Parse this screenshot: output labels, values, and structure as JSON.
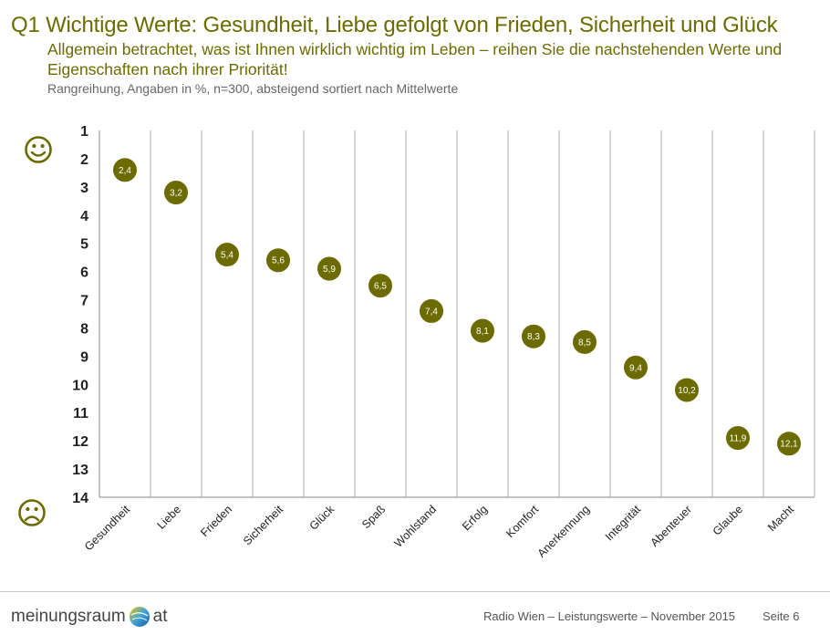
{
  "header": {
    "title": "Q1 Wichtige Werte: Gesundheit, Liebe gefolgt von Frieden, Sicherheit und Glück",
    "subtitle": "Allgemein betrachtet, was ist Ihnen wirklich wichtig im Leben – reihen Sie die nachstehenden Werte und Eigenschaften nach ihrer Priorität!",
    "note": "Rangreihung, Angaben in %, n=300, absteigend sortiert nach Mittelwerte"
  },
  "chart_data": {
    "type": "scatter",
    "categories": [
      "Gesundheit",
      "Liebe",
      "Frieden",
      "Sicherheit",
      "Glück",
      "Spaß",
      "Wohlstand",
      "Erfolg",
      "Komfort",
      "Anerkennung",
      "Integrität",
      "Abenteuer",
      "Glaube",
      "Macht"
    ],
    "values": [
      2.4,
      3.2,
      5.4,
      5.6,
      5.9,
      6.5,
      7.4,
      8.1,
      8.3,
      8.5,
      9.4,
      10.2,
      11.9,
      12.1
    ],
    "value_labels": [
      "2,4",
      "3,2",
      "5,4",
      "5,6",
      "5,9",
      "6,5",
      "7,4",
      "8,1",
      "8,3",
      "8,5",
      "9,4",
      "10,2",
      "11,9",
      "12,1"
    ],
    "y_ticks": [
      "1",
      "2",
      "3",
      "4",
      "5",
      "6",
      "7",
      "8",
      "9",
      "10",
      "11",
      "12",
      "13",
      "14"
    ],
    "ylim": [
      1,
      14
    ],
    "y_inverted": true,
    "grid": "vertical",
    "marker_color": "#6b6b00",
    "icons": {
      "top": "smiley-face-icon",
      "bottom": "frowning-face-icon"
    }
  },
  "footer": {
    "logo_left": "meinungsraum",
    "logo_right": "at",
    "source": "Radio Wien – Leistungswerte – November 2015",
    "page": "Seite 6"
  },
  "colors": {
    "accent": "#6b6b00",
    "text_gray": "#666666",
    "grid": "#b0b0b0"
  }
}
